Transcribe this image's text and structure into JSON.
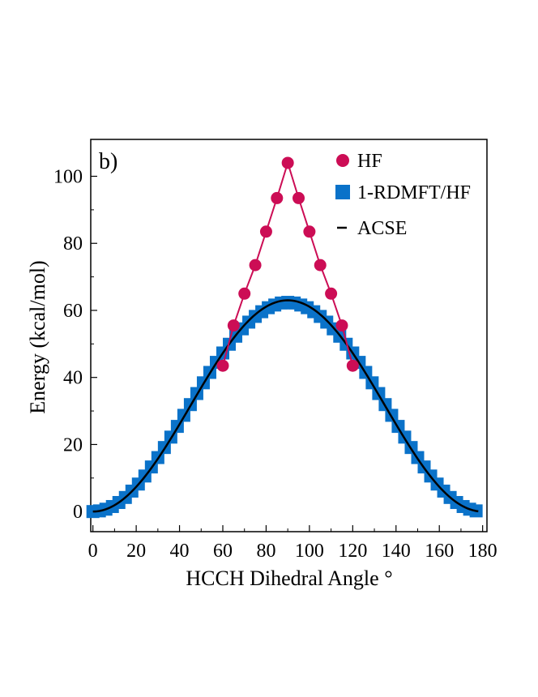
{
  "chart_data": {
    "type": "scatter",
    "panel_label": "b)",
    "xlabel": "HCCH Dihedral Angle °",
    "ylabel": "Energy (kcal/mol)",
    "xlim": [
      -1,
      182
    ],
    "ylim": [
      -6,
      111
    ],
    "xticks": [
      0,
      20,
      40,
      60,
      80,
      100,
      120,
      140,
      160,
      180
    ],
    "yticks": [
      0,
      20,
      40,
      60,
      80,
      100
    ],
    "legend_position": "top-right",
    "colors": {
      "hf": "#cc0d55",
      "rdmft": "#0a72c9",
      "acse": "#000000"
    },
    "series": [
      {
        "name": "HF",
        "marker": "circle",
        "line": true,
        "x": [
          60,
          65,
          70,
          75,
          80,
          85,
          90,
          95,
          100,
          105,
          110,
          115,
          120
        ],
        "y": [
          43.5,
          55.5,
          65,
          73.5,
          83.5,
          93.5,
          104,
          93.5,
          83.5,
          73.5,
          65,
          55.5,
          43.5
        ]
      },
      {
        "name": "1-RDMFT/HF",
        "marker": "square",
        "line": false,
        "x": [
          0,
          3,
          6,
          9,
          12,
          15,
          18,
          21,
          24,
          27,
          30,
          33,
          36,
          39,
          42,
          45,
          48,
          51,
          54,
          57,
          60,
          63,
          66,
          69,
          72,
          75,
          78,
          81,
          84,
          87,
          90,
          93,
          96,
          99,
          102,
          105,
          108,
          111,
          114,
          117,
          120,
          123,
          126,
          129,
          132,
          135,
          138,
          141,
          144,
          147,
          150,
          153,
          156,
          159,
          162,
          165,
          168,
          171,
          174,
          177
        ],
        "y": [
          0.0,
          0.2,
          0.7,
          1.5,
          2.7,
          4.2,
          6.1,
          8.2,
          10.6,
          13.3,
          16.1,
          19.1,
          22.2,
          25.4,
          28.7,
          31.9,
          35.2,
          38.4,
          41.5,
          44.5,
          47.3,
          49.9,
          52.3,
          54.5,
          56.5,
          58.2,
          59.6,
          60.8,
          61.6,
          62.2,
          62.4,
          62.2,
          61.6,
          60.8,
          59.6,
          58.2,
          56.5,
          54.5,
          52.3,
          49.9,
          47.3,
          44.5,
          41.5,
          38.4,
          35.2,
          31.9,
          28.7,
          25.4,
          22.2,
          19.1,
          16.1,
          13.3,
          10.6,
          8.2,
          6.1,
          4.2,
          2.7,
          1.5,
          0.7,
          0.2
        ]
      },
      {
        "name": "ACSE",
        "marker": "none",
        "line": true,
        "function": "63 * sin^2(x)",
        "amplitude": 63,
        "x_range": [
          0,
          178
        ]
      }
    ]
  }
}
